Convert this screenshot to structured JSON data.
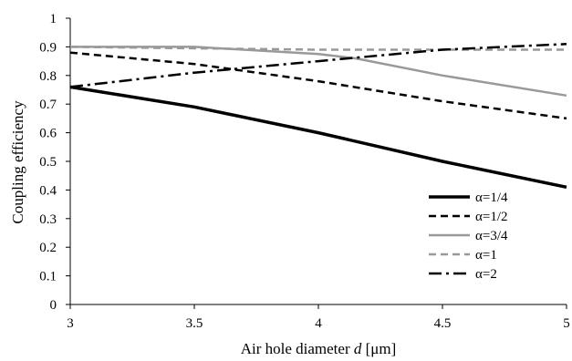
{
  "chart_data": {
    "type": "line",
    "title": "",
    "xlabel_main": "Air hole diameter ",
    "xlabel_var": "d",
    "xlabel_unit": " [μm]",
    "ylabel": "Coupling efficiency",
    "xlim": [
      3,
      5
    ],
    "ylim": [
      0,
      1
    ],
    "xticks": [
      3,
      3.5,
      4,
      4.5,
      5
    ],
    "xtick_labels": [
      "3",
      "3.5",
      "4",
      "4.5",
      "5"
    ],
    "yticks": [
      0,
      0.1,
      0.2,
      0.3,
      0.4,
      0.5,
      0.6,
      0.7,
      0.8,
      0.9,
      1
    ],
    "ytick_labels": [
      "0",
      "0.1",
      "0.2",
      "0.3",
      "0.4",
      "0.5",
      "0.6",
      "0.7",
      "0.8",
      "0.9",
      "1"
    ],
    "grid": false,
    "legend_position": "bottom-right",
    "series": [
      {
        "name": "α=1/4",
        "color": "#000000",
        "dash": "solid",
        "width": "thick",
        "x": [
          3,
          3.5,
          4,
          4.5,
          5
        ],
        "y": [
          0.76,
          0.69,
          0.6,
          0.5,
          0.41
        ]
      },
      {
        "name": "α=1/2",
        "color": "#000000",
        "dash": "dashed",
        "width": "medium",
        "x": [
          3,
          3.5,
          4,
          4.5,
          5
        ],
        "y": [
          0.88,
          0.84,
          0.78,
          0.71,
          0.65
        ]
      },
      {
        "name": "α=3/4",
        "color": "#999999",
        "dash": "solid",
        "width": "medium",
        "x": [
          3,
          3.5,
          4,
          4.15,
          4.5,
          5
        ],
        "y": [
          0.9,
          0.9,
          0.875,
          0.86,
          0.8,
          0.73
        ]
      },
      {
        "name": "α=1",
        "color": "#999999",
        "dash": "dashed",
        "width": "medium",
        "x": [
          3,
          3.5,
          4,
          4.5,
          5
        ],
        "y": [
          0.9,
          0.895,
          0.89,
          0.89,
          0.89
        ]
      },
      {
        "name": "α=2",
        "color": "#000000",
        "dash": "dashdot",
        "width": "medium",
        "x": [
          3,
          3.5,
          4,
          4.5,
          5
        ],
        "y": [
          0.76,
          0.81,
          0.85,
          0.89,
          0.91
        ]
      }
    ]
  }
}
